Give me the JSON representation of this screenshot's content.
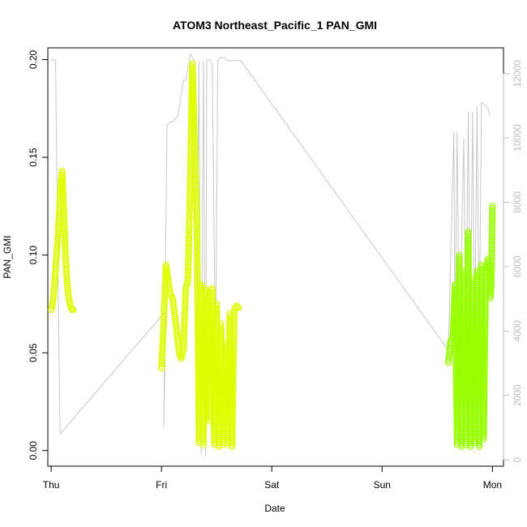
{
  "chart_data": {
    "type": "scatter",
    "title": "ATOM3 Northeast_Pacific_1 PAN_GMI",
    "xlabel": "Date",
    "ylabel": "PAN_GMI",
    "x_ticks": [
      "Thu",
      "Fri",
      "Sat",
      "Sun",
      "Mon"
    ],
    "y_ticks": [
      "0.00",
      "0.05",
      "0.10",
      "0.15",
      "0.20"
    ],
    "y2_ticks": [
      "0",
      "2000",
      "4000",
      "6000",
      "8000",
      "10000",
      "12000"
    ],
    "xlim": [
      -0.03,
      4.1
    ],
    "ylim": [
      -0.008,
      0.206
    ],
    "y2lim": [
      -200,
      12800
    ],
    "colors": {
      "series_early": "#ddff00",
      "series_late": "#99ff00",
      "altitude": "#c8c8c8",
      "axis": "#000000",
      "right_axis": "#bdbdbd"
    },
    "altitude_series": {
      "name": "",
      "x": [
        0.0,
        0.04,
        0.08,
        1.02,
        1.03,
        1.04,
        1.02,
        1.05,
        1.08,
        1.1,
        1.15,
        1.2,
        1.22,
        1.26,
        1.3,
        1.32,
        1.34,
        1.36,
        1.38,
        1.4,
        1.41,
        1.43,
        1.46,
        1.49,
        1.51,
        1.53,
        1.55,
        1.57,
        1.6,
        1.6,
        1.62,
        1.64,
        1.66,
        1.68,
        1.7,
        1.72,
        3.6,
        3.65,
        3.66,
        3.68,
        3.7,
        3.74,
        3.76,
        3.78,
        3.8,
        3.82,
        3.84,
        3.86,
        3.88,
        3.9,
        3.92,
        3.94,
        3.96,
        3.98
      ],
      "y": [
        12450,
        12400,
        800,
        4550,
        4550,
        4550,
        1000,
        10400,
        10500,
        10500,
        10700,
        11800,
        11800,
        12600,
        12400,
        3000,
        12400,
        200,
        12400,
        100,
        12400,
        12450,
        12300,
        3000,
        12400,
        12500,
        12500,
        12500,
        12400,
        12400,
        12400,
        12400,
        12400,
        12400,
        12400,
        12400,
        3400,
        10200,
        3400,
        10200,
        3500,
        10000,
        3400,
        10800,
        3600,
        10800,
        3600,
        11000,
        3700,
        11100,
        11050,
        11000,
        10900,
        10700
      ]
    },
    "series": [
      {
        "name": "",
        "x": [
          0.0,
          0.01,
          0.02,
          0.03,
          0.04,
          0.05,
          0.06,
          0.07,
          0.08,
          0.09,
          0.1,
          0.11,
          0.12,
          0.13,
          0.14,
          0.15,
          0.16,
          0.17,
          0.18,
          0.19,
          0.2
        ],
        "y": [
          0.072,
          0.074,
          0.078,
          0.085,
          0.093,
          0.1,
          0.108,
          0.118,
          0.128,
          0.138,
          0.143,
          0.13,
          0.115,
          0.1,
          0.09,
          0.083,
          0.078,
          0.075,
          0.073,
          0.072,
          0.072
        ]
      },
      {
        "name": "",
        "x": [
          1.0,
          1.02,
          1.04,
          1.06,
          1.08,
          1.1,
          1.12,
          1.14,
          1.16,
          1.18,
          1.2,
          1.22,
          1.24,
          1.26,
          1.28,
          1.3,
          1.32,
          1.34,
          1.36,
          1.38,
          1.4,
          1.42,
          1.44,
          1.46,
          1.48,
          1.5,
          1.52,
          1.54,
          1.56,
          1.58,
          1.6,
          1.62,
          1.64,
          1.66,
          1.68,
          1.7
        ],
        "y": [
          0.042,
          0.065,
          0.095,
          0.088,
          0.08,
          0.078,
          0.07,
          0.06,
          0.05,
          0.047,
          0.052,
          0.083,
          0.087,
          0.135,
          0.198,
          0.16,
          0.12,
          0.004,
          0.085,
          0.003,
          0.083,
          0.07,
          0.015,
          0.083,
          0.003,
          0.075,
          0.002,
          0.065,
          0.003,
          0.055,
          0.003,
          0.07,
          0.002,
          0.072,
          0.074,
          0.073
        ]
      },
      {
        "name": "",
        "x": [
          3.6,
          3.62,
          3.64,
          3.66,
          3.68,
          3.7,
          3.72,
          3.74,
          3.76,
          3.78,
          3.8,
          3.82,
          3.84,
          3.86,
          3.88,
          3.9,
          3.92,
          3.94,
          3.96,
          3.97,
          3.98,
          3.99,
          4.0
        ],
        "y": [
          0.045,
          0.056,
          0.058,
          0.085,
          0.003,
          0.1,
          0.002,
          0.092,
          0.003,
          0.112,
          0.002,
          0.088,
          0.004,
          0.092,
          0.002,
          0.095,
          0.006,
          0.09,
          0.098,
          0.093,
          0.078,
          0.085,
          0.125
        ]
      }
    ],
    "grid": false,
    "legend": "none"
  }
}
